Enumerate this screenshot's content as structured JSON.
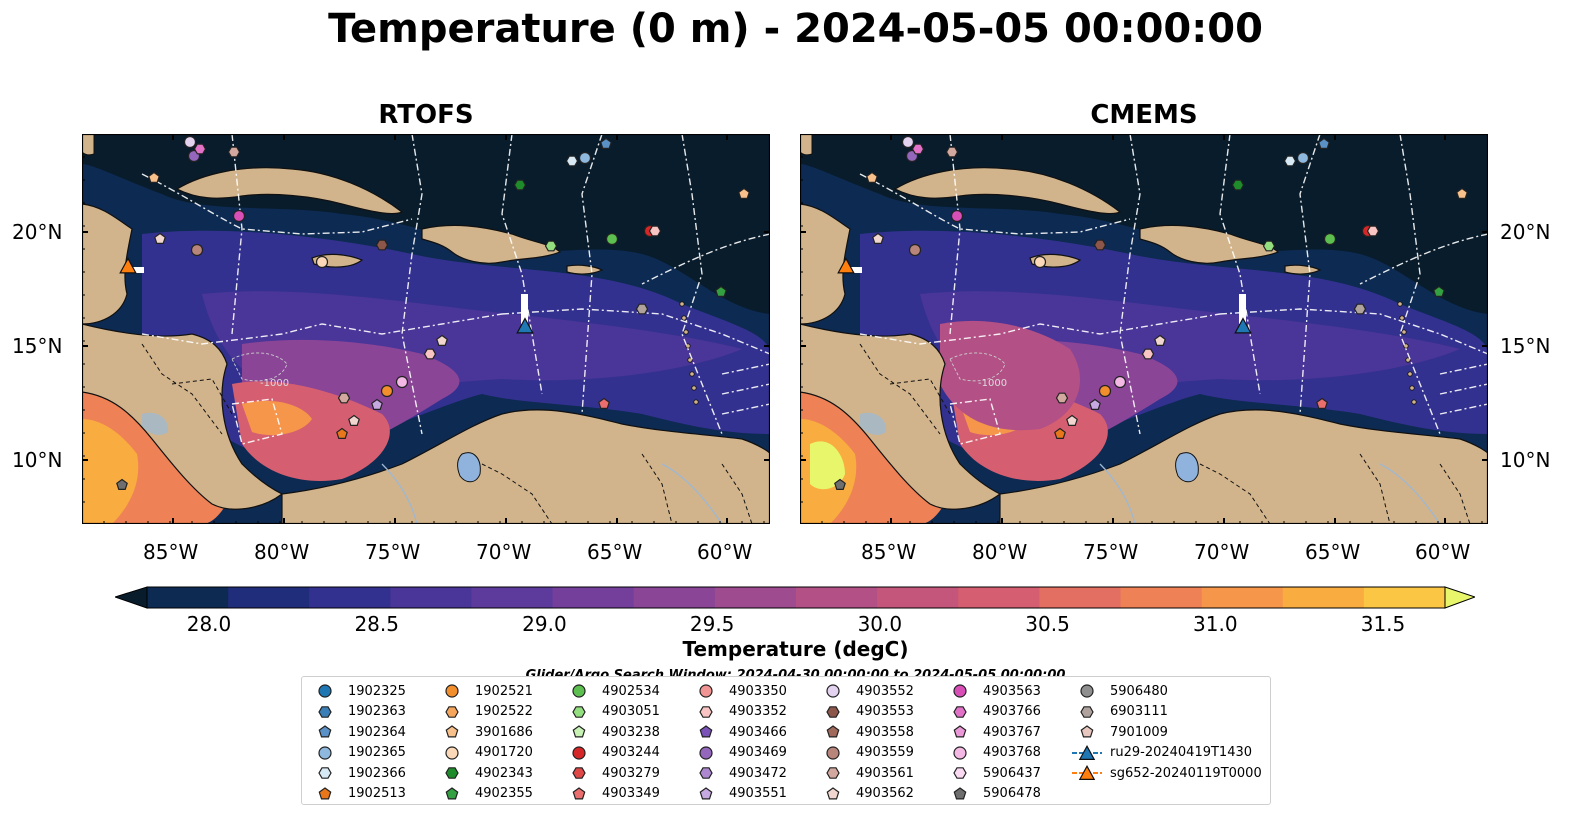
{
  "title": "Temperature (0 m) - 2024-05-05 00:00:00",
  "panels": [
    {
      "name": "RTOFS"
    },
    {
      "name": "CMEMS"
    }
  ],
  "axes": {
    "lon_ticks": [
      "85°W",
      "80°W",
      "75°W",
      "70°W",
      "65°W",
      "60°W"
    ],
    "lat_ticks": [
      "20°N",
      "15°N",
      "10°N"
    ]
  },
  "colorbar": {
    "label": "Temperature (degC)",
    "ticks": [
      "28.0",
      "28.5",
      "29.0",
      "29.5",
      "30.0",
      "30.5",
      "31.0",
      "31.5"
    ],
    "range": [
      28.0,
      31.5
    ],
    "colors": [
      "#081c2c",
      "#0d2a52",
      "#1f2d7a",
      "#33318f",
      "#4a3598",
      "#5d3b9c",
      "#743f9b",
      "#8a4597",
      "#9f4b8f",
      "#b35085",
      "#c5567b",
      "#d55f70",
      "#e36e62",
      "#ee8156",
      "#f5964a",
      "#f9ac40",
      "#fbc643",
      "#e8f66c"
    ],
    "contour_label": "-1000"
  },
  "search_window": "Glider/Argo Search Window: 2024-04-30 00:00:00 to 2024-05-05 00:00:00",
  "legend": [
    {
      "id": "1902325",
      "marker": "circle",
      "color": "#1f77b4"
    },
    {
      "id": "1902363",
      "marker": "hexagon",
      "color": "#3a7fb8"
    },
    {
      "id": "1902364",
      "marker": "pentagon",
      "color": "#5a92c8"
    },
    {
      "id": "1902365",
      "marker": "circle",
      "color": "#8fb8de"
    },
    {
      "id": "1902366",
      "marker": "hexagon",
      "color": "#d6e9f5"
    },
    {
      "id": "1902513",
      "marker": "pentagon",
      "color": "#e8761b"
    },
    {
      "id": "1902521",
      "marker": "circle",
      "color": "#f28e2b"
    },
    {
      "id": "1902522",
      "marker": "hexagon",
      "color": "#f5a55c"
    },
    {
      "id": "3901686",
      "marker": "pentagon",
      "color": "#f8c08a"
    },
    {
      "id": "4901720",
      "marker": "circle",
      "color": "#fbd8b8"
    },
    {
      "id": "4902343",
      "marker": "hexagon",
      "color": "#1e8c2a"
    },
    {
      "id": "4902355",
      "marker": "pentagon",
      "color": "#33a042"
    },
    {
      "id": "4902534",
      "marker": "circle",
      "color": "#5cbf4f"
    },
    {
      "id": "4903051",
      "marker": "hexagon",
      "color": "#93de7e"
    },
    {
      "id": "4903238",
      "marker": "pentagon",
      "color": "#c8f2b4"
    },
    {
      "id": "4903244",
      "marker": "circle",
      "color": "#d62728"
    },
    {
      "id": "4903279",
      "marker": "hexagon",
      "color": "#e04848"
    },
    {
      "id": "4903349",
      "marker": "pentagon",
      "color": "#ea6e6e"
    },
    {
      "id": "4903350",
      "marker": "circle",
      "color": "#f19494"
    },
    {
      "id": "4903352",
      "marker": "hexagon",
      "color": "#f8c4c4"
    },
    {
      "id": "4903466",
      "marker": "pentagon",
      "color": "#7a52b8"
    },
    {
      "id": "4903469",
      "marker": "circle",
      "color": "#9467bd"
    },
    {
      "id": "4903472",
      "marker": "hexagon",
      "color": "#ad88d0"
    },
    {
      "id": "4903551",
      "marker": "pentagon",
      "color": "#c6a9e0"
    },
    {
      "id": "4903552",
      "marker": "circle",
      "color": "#e3d2f0"
    },
    {
      "id": "4903553",
      "marker": "hexagon",
      "color": "#8c564b"
    },
    {
      "id": "4903558",
      "marker": "pentagon",
      "color": "#a0695c"
    },
    {
      "id": "4903559",
      "marker": "circle",
      "color": "#b8857a"
    },
    {
      "id": "4903561",
      "marker": "hexagon",
      "color": "#d3a89e"
    },
    {
      "id": "4903562",
      "marker": "pentagon",
      "color": "#f0d6cf"
    },
    {
      "id": "4903563",
      "marker": "circle",
      "color": "#d84fb8"
    },
    {
      "id": "4903766",
      "marker": "hexagon",
      "color": "#e272c8"
    },
    {
      "id": "4903767",
      "marker": "pentagon",
      "color": "#ea98d8"
    },
    {
      "id": "4903768",
      "marker": "circle",
      "color": "#f3b8e4"
    },
    {
      "id": "5906437",
      "marker": "hexagon",
      "color": "#fadaf2"
    },
    {
      "id": "5906478",
      "marker": "pentagon",
      "color": "#6e6e6e"
    },
    {
      "id": "5906480",
      "marker": "circle",
      "color": "#8f8f8f"
    },
    {
      "id": "6903111",
      "marker": "hexagon",
      "color": "#b0a39e"
    },
    {
      "id": "7901009",
      "marker": "pentagon",
      "color": "#e8c7bf"
    },
    {
      "id": "ru29-20240419T1430",
      "marker": "glider",
      "color": "#1f77b4"
    },
    {
      "id": "sg652-20240119T0000",
      "marker": "glider",
      "color": "#ff7f0e"
    }
  ]
}
